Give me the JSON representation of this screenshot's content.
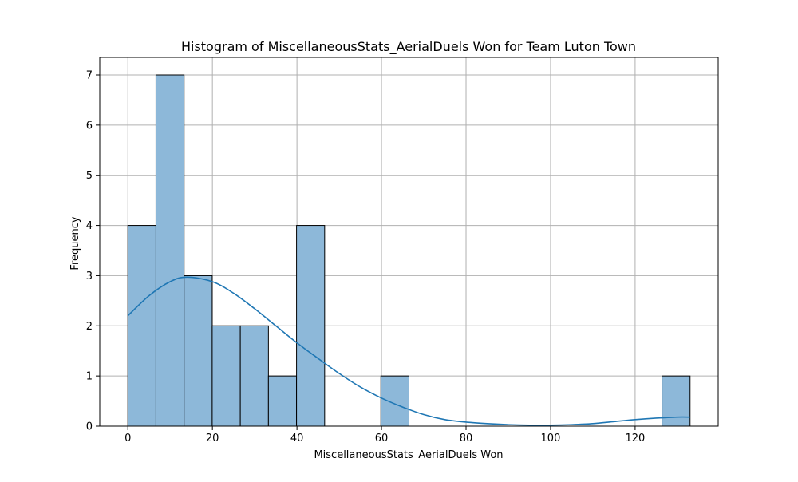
{
  "chart_data": {
    "type": "bar",
    "title": "Histogram of MiscellaneousStats_AerialDuels Won for Team Luton Town",
    "xlabel": "MiscellaneousStats_AerialDuels Won",
    "ylabel": "Frequency",
    "xlim": [
      -6.65,
      139.65
    ],
    "ylim": [
      0,
      7.35
    ],
    "x_ticks": [
      0,
      20,
      40,
      60,
      80,
      100,
      120
    ],
    "y_ticks": [
      0,
      1,
      2,
      3,
      4,
      5,
      6,
      7
    ],
    "grid": true,
    "bins": [
      {
        "start": 0.0,
        "end": 6.65,
        "count": 4
      },
      {
        "start": 6.65,
        "end": 13.3,
        "count": 7
      },
      {
        "start": 13.3,
        "end": 19.95,
        "count": 3
      },
      {
        "start": 19.95,
        "end": 26.6,
        "count": 2
      },
      {
        "start": 26.6,
        "end": 33.25,
        "count": 2
      },
      {
        "start": 33.25,
        "end": 39.9,
        "count": 1
      },
      {
        "start": 39.9,
        "end": 46.55,
        "count": 4
      },
      {
        "start": 59.85,
        "end": 66.5,
        "count": 1
      },
      {
        "start": 126.35,
        "end": 133.0,
        "count": 1
      }
    ],
    "kde": {
      "x": [
        0,
        5,
        10,
        14,
        20,
        25,
        30,
        35,
        40,
        45,
        50,
        55,
        60,
        65,
        70,
        75,
        80,
        85,
        90,
        95,
        100,
        105,
        110,
        115,
        120,
        125,
        130,
        133
      ],
      "y": [
        2.2,
        2.6,
        2.88,
        2.97,
        2.88,
        2.65,
        2.34,
        2.0,
        1.66,
        1.35,
        1.05,
        0.78,
        0.56,
        0.38,
        0.23,
        0.13,
        0.08,
        0.05,
        0.03,
        0.02,
        0.02,
        0.03,
        0.05,
        0.09,
        0.13,
        0.16,
        0.18,
        0.18
      ]
    },
    "colors": {
      "bar_fill": "#8db8d9",
      "bar_edge": "#000000",
      "kde_line": "#1f77b4",
      "grid": "#b0b0b0"
    }
  }
}
